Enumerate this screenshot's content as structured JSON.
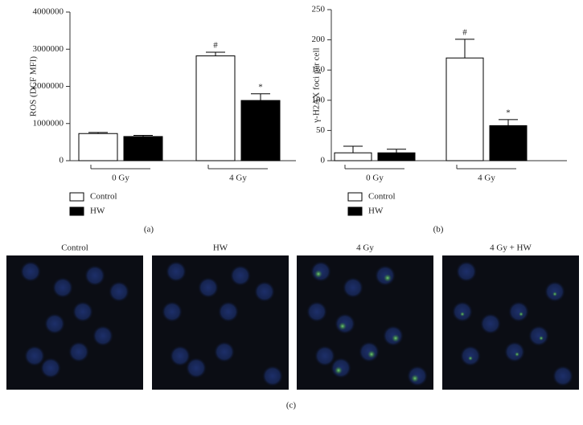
{
  "chart_data": [
    {
      "type": "bar",
      "panel_label": "(a)",
      "y_label": "ROS (DCF MFI)",
      "categories": [
        "0 Gy",
        "4 Gy"
      ],
      "series": [
        {
          "name": "Control",
          "color": "#ffffff",
          "values": [
            730000,
            2820000
          ],
          "errors": [
            30000,
            100000
          ],
          "markers": [
            null,
            "#"
          ]
        },
        {
          "name": "HW",
          "color": "#000000",
          "values": [
            650000,
            1620000
          ],
          "errors": [
            30000,
            180000
          ],
          "markers": [
            null,
            "*"
          ]
        }
      ],
      "ylim": [
        0,
        4000000
      ],
      "yticks": [
        0,
        1000000,
        2000000,
        3000000,
        4000000
      ]
    },
    {
      "type": "bar",
      "panel_label": "(b)",
      "y_label": "γ-H2AX foci per cell",
      "categories": [
        "0 Gy",
        "4 Gy"
      ],
      "series": [
        {
          "name": "Control",
          "color": "#ffffff",
          "values": [
            13,
            170
          ],
          "errors": [
            11,
            31
          ],
          "markers": [
            null,
            "#"
          ]
        },
        {
          "name": "HW",
          "color": "#000000",
          "values": [
            13,
            58
          ],
          "errors": [
            6,
            10
          ],
          "markers": [
            null,
            "*"
          ]
        }
      ],
      "ylim": [
        0,
        250
      ],
      "yticks": [
        0,
        50,
        100,
        150,
        200,
        250
      ]
    }
  ],
  "images": {
    "panel_label": "(c)",
    "titles": [
      "Control",
      "HW",
      "4 Gy",
      "4 Gy + HW"
    ]
  }
}
